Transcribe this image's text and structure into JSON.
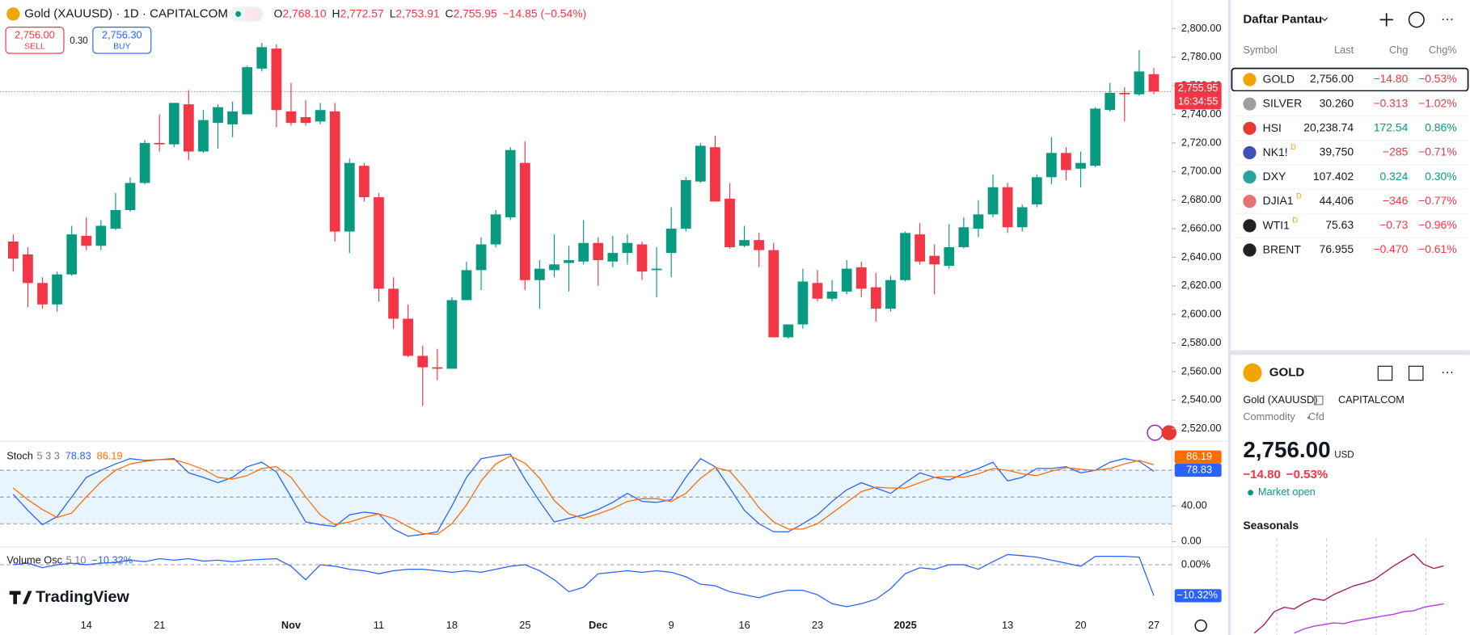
{
  "header": {
    "title": "Gold (XAUUSD) · 1D · CAPITALCOM",
    "ohlc": [
      {
        "key": "O",
        "value": "2,768.10"
      },
      {
        "key": "H",
        "value": "2,772.57"
      },
      {
        "key": "L",
        "value": "2,753.91"
      },
      {
        "key": "C",
        "value": "2,755.95"
      }
    ],
    "change": "−14.85 (−0.54%)",
    "sell": {
      "price": "2,756.00",
      "label": "SELL"
    },
    "spread": "0.30",
    "buy": {
      "price": "2,756.30",
      "label": "BUY"
    }
  },
  "branding": "TradingView",
  "chart_data": [
    {
      "type": "candlestick",
      "open": [
        2651,
        2642,
        2622,
        2607,
        2628,
        2655,
        2648,
        2660,
        2673,
        2692,
        2720,
        2719,
        2747,
        2714,
        2734,
        2733,
        2740,
        2772,
        2786,
        2742,
        2738,
        2735,
        2742,
        2658,
        2704,
        2682,
        2618,
        2597,
        2571,
        2563,
        2562,
        2610,
        2631,
        2649,
        2668,
        2706,
        2624,
        2631,
        2636,
        2637,
        2650,
        2637,
        2643,
        2649,
        2631,
        2643,
        2660,
        2693,
        2717,
        2681,
        2648,
        2652,
        2645,
        2584,
        2593,
        2622,
        2611,
        2616,
        2633,
        2619,
        2604,
        2624,
        2656,
        2641,
        2634,
        2647,
        2660,
        2670,
        2689,
        2661,
        2677,
        2696,
        2713,
        2702,
        2704,
        2743,
        2755,
        2754,
        2768.1
      ],
      "high": [
        2656,
        2647,
        2626,
        2630,
        2662,
        2668,
        2666,
        2685,
        2696,
        2722,
        2740,
        2748,
        2757,
        2743,
        2747,
        2749,
        2774,
        2790,
        2789,
        2762,
        2750,
        2748,
        2748,
        2709,
        2706,
        2685,
        2626,
        2607,
        2578,
        2576,
        2612,
        2637,
        2654,
        2673,
        2717,
        2721,
        2638,
        2656,
        2648,
        2666,
        2654,
        2655,
        2656,
        2651,
        2647,
        2675,
        2696,
        2720,
        2725,
        2692,
        2662,
        2657,
        2650,
        2593,
        2632,
        2631,
        2624,
        2638,
        2637,
        2629,
        2627,
        2658,
        2664,
        2649,
        2663,
        2668,
        2680,
        2698,
        2692,
        2677,
        2698,
        2724,
        2717,
        2714,
        2745,
        2762,
        2759,
        2785,
        2772.57
      ],
      "low": [
        2630,
        2605,
        2604,
        2602,
        2627,
        2645,
        2645,
        2659,
        2672,
        2691,
        2714,
        2717,
        2708,
        2713,
        2716,
        2724,
        2740,
        2770,
        2731,
        2732,
        2732,
        2733,
        2651,
        2643,
        2679,
        2609,
        2590,
        2570,
        2536,
        2554,
        2562,
        2610,
        2617,
        2647,
        2666,
        2617,
        2604,
        2626,
        2616,
        2635,
        2620,
        2633,
        2635,
        2624,
        2612,
        2626,
        2658,
        2692,
        2679,
        2646,
        2647,
        2633,
        2584,
        2583,
        2590,
        2609,
        2609,
        2614,
        2612,
        2595,
        2602,
        2623,
        2635,
        2614,
        2632,
        2646,
        2654,
        2668,
        2657,
        2658,
        2675,
        2691,
        2694,
        2689,
        2703,
        2742,
        2735,
        2753,
        2753.91
      ],
      "close": [
        2639,
        2622,
        2607,
        2628,
        2656,
        2648,
        2662,
        2673,
        2692,
        2720,
        2719,
        2748,
        2714,
        2736,
        2745,
        2742,
        2773,
        2787,
        2743,
        2734,
        2734,
        2743,
        2658,
        2706,
        2682,
        2618,
        2597,
        2571,
        2563,
        2562,
        2610,
        2631,
        2649,
        2670,
        2715,
        2624,
        2632,
        2635,
        2638,
        2650,
        2638,
        2643,
        2650,
        2630,
        2632,
        2660,
        2694,
        2718,
        2679,
        2647,
        2652,
        2645,
        2584,
        2593,
        2623,
        2611,
        2616,
        2632,
        2618,
        2604,
        2624,
        2657,
        2637,
        2635,
        2647,
        2661,
        2670,
        2689,
        2661,
        2675,
        2696,
        2713,
        2701,
        2706,
        2744,
        2755,
        2754,
        2770,
        2755.95
      ],
      "up_color": "#089981",
      "down_color": "#f23645",
      "ylim": [
        2512,
        2820
      ],
      "yticks": [
        {
          "value": 2520,
          "label": "2,520.00"
        },
        {
          "value": 2540,
          "label": "2,540.00"
        },
        {
          "value": 2560,
          "label": "2,560.00"
        },
        {
          "value": 2580,
          "label": "2,580.00"
        },
        {
          "value": 2600,
          "label": "2,600.00"
        },
        {
          "value": 2620,
          "label": "2,620.00"
        },
        {
          "value": 2640,
          "label": "2,640.00"
        },
        {
          "value": 2660,
          "label": "2,660.00"
        },
        {
          "value": 2680,
          "label": "2,680.00"
        },
        {
          "value": 2700,
          "label": "2,700.00"
        },
        {
          "value": 2720,
          "label": "2,720.00"
        },
        {
          "value": 2740,
          "label": "2,740.00"
        },
        {
          "value": 2760,
          "label": "2,760.00"
        },
        {
          "value": 2780,
          "label": "2,780.00"
        },
        {
          "value": 2800,
          "label": "2,800.00"
        }
      ],
      "xlabels": [
        "14",
        "21",
        "Nov",
        "11",
        "18",
        "25",
        "Dec",
        "9",
        "16",
        "23",
        "2025",
        "13",
        "20",
        "27"
      ],
      "last_price": {
        "label": "2,755.95",
        "countdown": "16:34:55"
      }
    },
    {
      "type": "line",
      "title": "Stoch",
      "params": "5 3 3",
      "series": [
        {
          "color": "#2962ff",
          "values": [
            53,
            35,
            19,
            28,
            50,
            72,
            80,
            87,
            93,
            91,
            92,
            93,
            77,
            72,
            66,
            72,
            84,
            89,
            78,
            50,
            22,
            19,
            17,
            30,
            33,
            31,
            14,
            6,
            8,
            11,
            40,
            72,
            93,
            96,
            98,
            70,
            45,
            22,
            26,
            30,
            36,
            44,
            54,
            45,
            44,
            47,
            72,
            93,
            84,
            60,
            35,
            20,
            11,
            11,
            20,
            30,
            45,
            58,
            66,
            60,
            54,
            66,
            77,
            72,
            69,
            76,
            82,
            89,
            68,
            72,
            82,
            82,
            84,
            77,
            80,
            89,
            93,
            90,
            78.83
          ]
        },
        {
          "color": "#ff6d00",
          "values": [
            60,
            47,
            36,
            27,
            32,
            50,
            67,
            80,
            87,
            90,
            92,
            92,
            87,
            81,
            72,
            70,
            74,
            82,
            84,
            72,
            50,
            30,
            19,
            22,
            27,
            31,
            26,
            17,
            9,
            8,
            20,
            41,
            68,
            87,
            96,
            88,
            71,
            46,
            31,
            26,
            31,
            37,
            45,
            48,
            48,
            45,
            54,
            71,
            83,
            79,
            60,
            38,
            22,
            14,
            14,
            20,
            32,
            44,
            56,
            61,
            60,
            60,
            66,
            72,
            73,
            72,
            76,
            82,
            80,
            76,
            74,
            79,
            83,
            81,
            80,
            82,
            87,
            91,
            86.19
          ]
        }
      ],
      "levels": [
        80,
        50,
        20
      ],
      "ylim": [
        -5,
        111.6
      ],
      "yticks": [
        {
          "value": 40,
          "label": "40.00"
        },
        {
          "value": 0,
          "label": "0.00"
        }
      ]
    },
    {
      "type": "line",
      "title": "Volume Osc",
      "params": "5 10",
      "series": [
        {
          "color": "#2962ff",
          "values": [
            0,
            0.5,
            -1,
            0,
            0.5,
            0,
            0.5,
            0.8,
            1.5,
            1,
            2,
            1.5,
            2,
            1.2,
            1.5,
            1,
            1.5,
            1.8,
            2,
            -0.5,
            -5,
            0,
            -0.5,
            -1.5,
            -2,
            -3,
            -2,
            -1.5,
            -1.5,
            -2,
            -2.5,
            -2,
            -2.5,
            -1.5,
            -0.5,
            0,
            -2,
            -5,
            -9,
            -7.5,
            -3,
            -2.5,
            -2,
            -2.5,
            -2,
            -2.5,
            -4,
            -6.5,
            -7,
            -9,
            -10,
            -11,
            -9.5,
            -8.5,
            -8.5,
            -10,
            -13,
            -14,
            -13,
            -11.5,
            -8,
            -3,
            -1,
            -1.5,
            0,
            0,
            -1.5,
            1,
            3.4,
            3,
            2.5,
            1.5,
            0.5,
            -0.5,
            2.8,
            2.8,
            2.8,
            2.5,
            -10.32
          ],
          "last_label": "−10.32%"
        }
      ],
      "ylim": [
        -15.3,
        5.6
      ],
      "yticks": [
        {
          "value": 0,
          "label": "0.00%"
        }
      ]
    },
    {
      "type": "line",
      "title": "Seasonals",
      "series": [
        {
          "color": "#a0226b",
          "values": [
            0,
            10,
            25,
            30,
            28,
            35,
            40,
            38,
            45,
            50,
            55,
            58,
            62,
            70,
            78,
            85,
            92,
            80,
            75,
            78
          ]
        },
        {
          "color": "#b43ce0",
          "values": [
            null,
            null,
            null,
            null,
            0,
            5,
            8,
            10,
            12,
            11,
            14,
            16,
            18,
            20,
            22,
            25,
            26,
            30,
            32,
            34
          ]
        }
      ],
      "ylim": [
        0,
        100
      ]
    }
  ],
  "watchlist": {
    "title": "Daftar Pantau",
    "columns": [
      "Symbol",
      "Last",
      "Chg",
      "Chg%"
    ],
    "rows": [
      {
        "symbol": "GOLD",
        "last": "2,756.00",
        "chg": "−14.80",
        "chgp": "−0.53%"
      },
      {
        "symbol": "SILVER",
        "last": "30.260",
        "chg": "−0.313",
        "chgp": "−1.02%"
      },
      {
        "symbol": "HSI",
        "last": "20,238.74",
        "chg": "172.54",
        "chgp": "0.86%"
      },
      {
        "symbol": "NK1!",
        "badge": "D",
        "last": "39,750",
        "chg": "−285",
        "chgp": "−0.71%"
      },
      {
        "symbol": "DXY",
        "last": "107.402",
        "chg": "0.324",
        "chgp": "0.30%"
      },
      {
        "symbol": "DJIA1",
        "badge": "D",
        "last": "44,406",
        "chg": "−346",
        "chgp": "−0.77%"
      },
      {
        "symbol": "WTI1",
        "badge": "D",
        "last": "75.63",
        "chg": "−0.73",
        "chgp": "−0.96%"
      },
      {
        "symbol": "BRENT",
        "last": "76.955",
        "chg": "−0.470",
        "chgp": "−0.61%"
      }
    ]
  },
  "details": {
    "symbol": "GOLD",
    "name": "Gold (XAUUSD)",
    "exchange": "CAPITALCOM",
    "category": "Commodity",
    "kind": "Cfd",
    "price": "2,756.00",
    "currency": "USD",
    "change": "−14.80",
    "change_pct": "−0.53%",
    "status": "Market open"
  }
}
